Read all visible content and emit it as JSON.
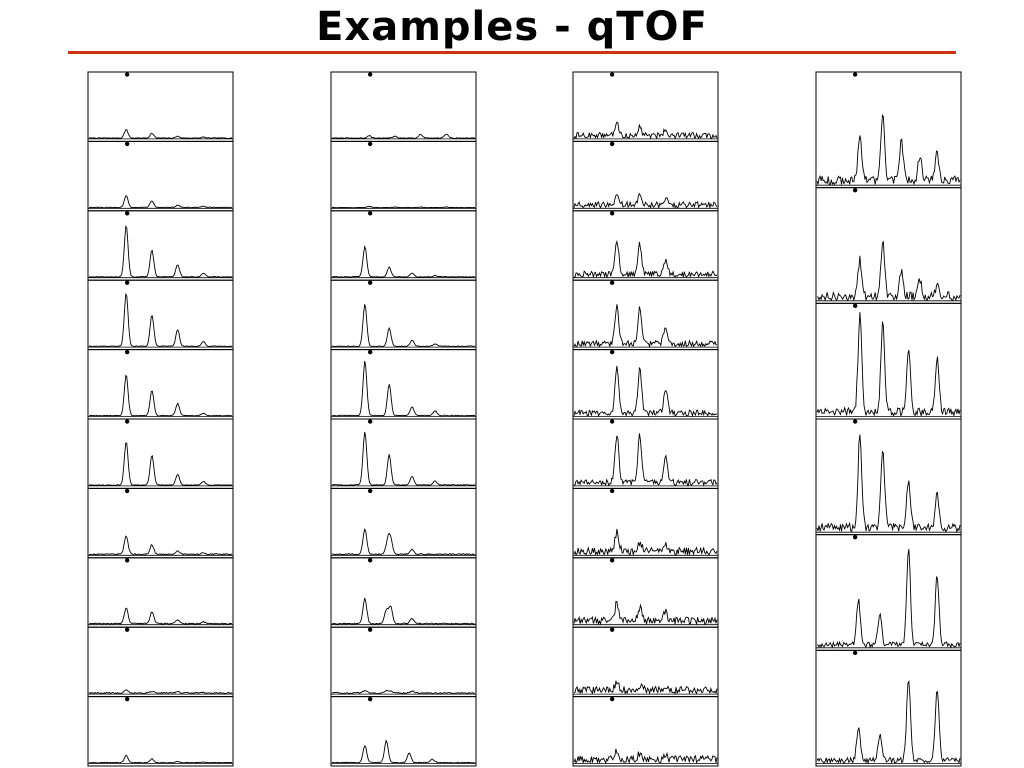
{
  "slide": {
    "title": "Examples - qTOF",
    "rule_color": "#cc3311"
  },
  "chart_data": {
    "type": "line",
    "title": "",
    "xlabel": "",
    "ylabel": "",
    "grid": false,
    "legend": "none",
    "x": [
      0,
      1,
      2,
      3,
      4,
      5,
      6,
      7,
      8,
      9,
      10
    ],
    "xlim": [
      0,
      10
    ],
    "ylim": [
      0,
      1
    ],
    "note_peaks_positions": [
      2.6,
      4.4,
      6.2,
      8.0
    ],
    "series": [
      {
        "panels": [
          {
            "noise": 0.012,
            "peaks": [
              [
                2.6,
                0.14
              ],
              [
                4.4,
                0.08
              ],
              [
                6.2,
                0.03
              ],
              [
                8.0,
                0.015
              ]
            ]
          },
          {
            "noise": 0.012,
            "peaks": [
              [
                2.6,
                0.2
              ],
              [
                4.4,
                0.11
              ],
              [
                6.2,
                0.04
              ],
              [
                8.0,
                0.02
              ]
            ]
          },
          {
            "noise": 0.012,
            "peaks": [
              [
                2.6,
                0.85
              ],
              [
                4.4,
                0.45
              ],
              [
                6.2,
                0.2
              ],
              [
                8.0,
                0.06
              ]
            ]
          },
          {
            "noise": 0.012,
            "peaks": [
              [
                2.6,
                0.88
              ],
              [
                4.4,
                0.52
              ],
              [
                6.2,
                0.27
              ],
              [
                8.0,
                0.08
              ]
            ]
          },
          {
            "noise": 0.012,
            "peaks": [
              [
                2.6,
                0.68
              ],
              [
                4.4,
                0.42
              ],
              [
                6.2,
                0.2
              ],
              [
                8.0,
                0.04
              ]
            ]
          },
          {
            "noise": 0.012,
            "peaks": [
              [
                2.6,
                0.72
              ],
              [
                4.4,
                0.5
              ],
              [
                6.2,
                0.18
              ],
              [
                8.0,
                0.06
              ]
            ]
          },
          {
            "noise": 0.02,
            "peaks": [
              [
                2.6,
                0.3
              ],
              [
                4.4,
                0.16
              ],
              [
                6.2,
                0.06
              ],
              [
                8.0,
                0.03
              ]
            ]
          },
          {
            "noise": 0.02,
            "peaks": [
              [
                2.6,
                0.26
              ],
              [
                4.4,
                0.2
              ],
              [
                6.2,
                0.06
              ],
              [
                8.0,
                0.03
              ]
            ]
          },
          {
            "noise": 0.02,
            "peaks": [
              [
                2.6,
                0.06
              ],
              [
                4.4,
                0.03
              ],
              [
                6.2,
                0.02
              ],
              [
                8.0,
                0.01
              ]
            ]
          },
          {
            "noise": 0.012,
            "peaks": [
              [
                2.6,
                0.12
              ],
              [
                4.4,
                0.06
              ],
              [
                6.2,
                0.02
              ],
              [
                8.0,
                0.01
              ]
            ]
          }
        ]
      },
      {
        "panels": [
          {
            "noise": 0.012,
            "peaks": [
              [
                2.6,
                0.04
              ],
              [
                4.4,
                0.03
              ],
              [
                6.2,
                0.06
              ],
              [
                8.0,
                0.07
              ]
            ]
          },
          {
            "noise": 0.008,
            "peaks": [
              [
                2.6,
                0.02
              ],
              [
                4.4,
                0.01
              ],
              [
                6.2,
                0.01
              ],
              [
                8.0,
                0.01
              ]
            ]
          },
          {
            "noise": 0.012,
            "peaks": [
              [
                2.3,
                0.5
              ],
              [
                4.0,
                0.16
              ],
              [
                5.6,
                0.06
              ],
              [
                7.2,
                0.02
              ]
            ]
          },
          {
            "noise": 0.012,
            "peaks": [
              [
                2.3,
                0.7
              ],
              [
                4.0,
                0.3
              ],
              [
                5.6,
                0.1
              ],
              [
                7.2,
                0.04
              ]
            ]
          },
          {
            "noise": 0.015,
            "peaks": [
              [
                2.3,
                0.9
              ],
              [
                4.0,
                0.52
              ],
              [
                5.6,
                0.15
              ],
              [
                7.2,
                0.08
              ]
            ]
          },
          {
            "noise": 0.015,
            "peaks": [
              [
                2.3,
                0.88
              ],
              [
                4.0,
                0.5
              ],
              [
                5.6,
                0.14
              ],
              [
                7.2,
                0.07
              ]
            ]
          },
          {
            "noise": 0.02,
            "peaks": [
              [
                2.3,
                0.42
              ],
              [
                3.9,
                0.22
              ],
              [
                4.1,
                0.24
              ],
              [
                5.6,
                0.08
              ]
            ]
          },
          {
            "noise": 0.02,
            "peaks": [
              [
                2.3,
                0.42
              ],
              [
                3.8,
                0.22
              ],
              [
                4.1,
                0.28
              ],
              [
                5.6,
                0.08
              ]
            ]
          },
          {
            "noise": 0.02,
            "peaks": [
              [
                2.3,
                0.04
              ],
              [
                3.8,
                0.03
              ],
              [
                4.1,
                0.04
              ],
              [
                5.6,
                0.03
              ]
            ]
          },
          {
            "noise": 0.015,
            "peaks": [
              [
                2.3,
                0.28
              ],
              [
                3.8,
                0.36
              ],
              [
                5.4,
                0.16
              ],
              [
                7.0,
                0.06
              ]
            ]
          }
        ]
      },
      {
        "panels": [
          {
            "noise": 0.1,
            "peaks": [
              [
                3.0,
                0.2
              ],
              [
                4.6,
                0.14
              ],
              [
                6.4,
                0.1
              ]
            ]
          },
          {
            "noise": 0.1,
            "peaks": [
              [
                3.0,
                0.18
              ],
              [
                4.6,
                0.14
              ],
              [
                6.4,
                0.1
              ]
            ]
          },
          {
            "noise": 0.1,
            "peaks": [
              [
                3.0,
                0.58
              ],
              [
                4.6,
                0.5
              ],
              [
                6.4,
                0.22
              ]
            ]
          },
          {
            "noise": 0.1,
            "peaks": [
              [
                3.0,
                0.62
              ],
              [
                4.6,
                0.58
              ],
              [
                6.4,
                0.3
              ]
            ]
          },
          {
            "noise": 0.1,
            "peaks": [
              [
                3.0,
                0.78
              ],
              [
                4.6,
                0.72
              ],
              [
                6.4,
                0.4
              ]
            ]
          },
          {
            "noise": 0.1,
            "peaks": [
              [
                3.0,
                0.8
              ],
              [
                4.6,
                0.78
              ],
              [
                6.4,
                0.45
              ]
            ]
          },
          {
            "noise": 0.12,
            "peaks": [
              [
                3.0,
                0.32
              ],
              [
                4.6,
                0.16
              ],
              [
                6.4,
                0.12
              ]
            ]
          },
          {
            "noise": 0.12,
            "peaks": [
              [
                3.0,
                0.3
              ],
              [
                4.6,
                0.22
              ],
              [
                6.4,
                0.14
              ]
            ]
          },
          {
            "noise": 0.12,
            "peaks": [
              [
                3.0,
                0.12
              ],
              [
                4.6,
                0.08
              ],
              [
                6.4,
                0.06
              ]
            ]
          },
          {
            "noise": 0.12,
            "peaks": [
              [
                3.0,
                0.16
              ],
              [
                4.6,
                0.1
              ],
              [
                6.4,
                0.06
              ]
            ]
          }
        ]
      },
      {
        "panels": [
          {
            "noise": 0.08,
            "peaks": [
              [
                3.0,
                0.44
              ],
              [
                4.6,
                0.62
              ],
              [
                5.9,
                0.38
              ],
              [
                7.2,
                0.24
              ],
              [
                8.4,
                0.26
              ]
            ]
          },
          {
            "noise": 0.08,
            "peaks": [
              [
                3.0,
                0.34
              ],
              [
                4.6,
                0.5
              ],
              [
                5.9,
                0.22
              ],
              [
                7.2,
                0.14
              ],
              [
                8.4,
                0.1
              ]
            ]
          },
          {
            "noise": 0.08,
            "peaks": [
              [
                3.0,
                0.92
              ],
              [
                4.6,
                0.86
              ],
              [
                6.4,
                0.6
              ],
              [
                8.4,
                0.5
              ]
            ]
          },
          {
            "noise": 0.08,
            "peaks": [
              [
                3.0,
                0.88
              ],
              [
                4.6,
                0.72
              ],
              [
                6.4,
                0.44
              ],
              [
                8.4,
                0.3
              ]
            ]
          },
          {
            "noise": 0.05,
            "peaks": [
              [
                2.9,
                0.42
              ],
              [
                4.4,
                0.28
              ],
              [
                6.4,
                0.9
              ],
              [
                8.4,
                0.66
              ]
            ]
          },
          {
            "noise": 0.05,
            "peaks": [
              [
                2.9,
                0.3
              ],
              [
                4.4,
                0.24
              ],
              [
                6.4,
                0.78
              ],
              [
                8.4,
                0.68
              ]
            ]
          }
        ]
      }
    ]
  }
}
